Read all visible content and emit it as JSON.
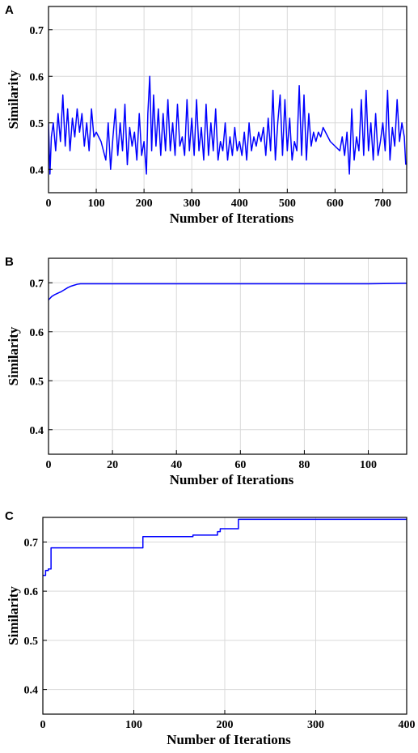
{
  "chart_data": [
    {
      "type": "line",
      "panel": "A",
      "xlabel": "Number of Iterations",
      "ylabel": "Similarity",
      "xlim": [
        0,
        750
      ],
      "ylim": [
        0.35,
        0.75
      ],
      "xticks": [
        0,
        100,
        200,
        300,
        400,
        500,
        600,
        700
      ],
      "yticks": [
        0.4,
        0.5,
        0.6,
        0.7
      ],
      "grid": true,
      "series": [
        {
          "color": "#0000ff",
          "x": [
            0,
            3,
            6,
            10,
            15,
            20,
            25,
            30,
            35,
            40,
            45,
            50,
            55,
            60,
            65,
            70,
            75,
            80,
            85,
            90,
            95,
            100,
            110,
            120,
            125,
            130,
            135,
            140,
            145,
            150,
            155,
            160,
            165,
            170,
            175,
            180,
            185,
            190,
            195,
            200,
            205,
            208,
            212,
            216,
            220,
            225,
            230,
            235,
            240,
            245,
            250,
            255,
            260,
            265,
            270,
            275,
            280,
            285,
            290,
            295,
            300,
            305,
            310,
            315,
            320,
            325,
            330,
            335,
            340,
            345,
            350,
            355,
            360,
            365,
            370,
            375,
            380,
            385,
            390,
            395,
            400,
            405,
            410,
            415,
            420,
            425,
            430,
            435,
            440,
            445,
            450,
            455,
            460,
            465,
            470,
            475,
            480,
            485,
            490,
            495,
            500,
            505,
            510,
            515,
            520,
            525,
            530,
            535,
            540,
            545,
            550,
            555,
            560,
            565,
            570,
            575,
            580,
            590,
            600,
            610,
            615,
            620,
            625,
            630,
            635,
            640,
            645,
            650,
            655,
            660,
            665,
            670,
            675,
            680,
            685,
            690,
            695,
            700,
            705,
            710,
            715,
            720,
            725,
            730,
            735,
            740,
            745,
            748
          ],
          "y": [
            0.5,
            0.39,
            0.47,
            0.5,
            0.44,
            0.52,
            0.46,
            0.56,
            0.45,
            0.53,
            0.44,
            0.51,
            0.47,
            0.53,
            0.48,
            0.52,
            0.45,
            0.5,
            0.44,
            0.53,
            0.47,
            0.48,
            0.46,
            0.42,
            0.5,
            0.4,
            0.47,
            0.53,
            0.43,
            0.5,
            0.44,
            0.54,
            0.41,
            0.49,
            0.45,
            0.48,
            0.42,
            0.52,
            0.43,
            0.46,
            0.39,
            0.52,
            0.6,
            0.44,
            0.56,
            0.45,
            0.53,
            0.43,
            0.52,
            0.44,
            0.55,
            0.44,
            0.5,
            0.43,
            0.54,
            0.45,
            0.47,
            0.43,
            0.55,
            0.44,
            0.51,
            0.43,
            0.55,
            0.44,
            0.49,
            0.42,
            0.54,
            0.43,
            0.5,
            0.44,
            0.53,
            0.42,
            0.46,
            0.44,
            0.5,
            0.42,
            0.47,
            0.43,
            0.49,
            0.44,
            0.46,
            0.43,
            0.48,
            0.42,
            0.5,
            0.44,
            0.47,
            0.45,
            0.48,
            0.46,
            0.49,
            0.43,
            0.51,
            0.44,
            0.57,
            0.42,
            0.5,
            0.56,
            0.43,
            0.55,
            0.44,
            0.51,
            0.42,
            0.46,
            0.44,
            0.58,
            0.43,
            0.56,
            0.42,
            0.52,
            0.45,
            0.48,
            0.46,
            0.48,
            0.47,
            0.49,
            0.48,
            0.46,
            0.45,
            0.44,
            0.47,
            0.43,
            0.48,
            0.39,
            0.53,
            0.42,
            0.47,
            0.44,
            0.55,
            0.43,
            0.57,
            0.44,
            0.5,
            0.42,
            0.52,
            0.43,
            0.46,
            0.5,
            0.44,
            0.57,
            0.42,
            0.49,
            0.45,
            0.55,
            0.46,
            0.5,
            0.47,
            0.41
          ]
        }
      ]
    },
    {
      "type": "line",
      "panel": "B",
      "xlabel": "Number of Iterations",
      "ylabel": "Similarity",
      "xlim": [
        0,
        112
      ],
      "ylim": [
        0.35,
        0.75
      ],
      "xticks": [
        0,
        20,
        40,
        60,
        80,
        100
      ],
      "yticks": [
        0.4,
        0.5,
        0.6,
        0.7
      ],
      "grid": true,
      "series": [
        {
          "color": "#0000ff",
          "x": [
            0,
            1,
            2,
            3,
            4,
            5,
            6,
            7,
            8,
            9,
            10,
            12,
            15,
            20,
            40,
            60,
            80,
            100,
            112
          ],
          "y": [
            0.665,
            0.672,
            0.676,
            0.679,
            0.682,
            0.686,
            0.69,
            0.693,
            0.695,
            0.697,
            0.698,
            0.698,
            0.698,
            0.698,
            0.698,
            0.698,
            0.698,
            0.698,
            0.699
          ]
        }
      ]
    },
    {
      "type": "line",
      "panel": "C",
      "xlabel": "Number of Iterations",
      "ylabel": "Similarity",
      "xlim": [
        0,
        400
      ],
      "ylim": [
        0.35,
        0.75
      ],
      "xticks": [
        0,
        100,
        200,
        300,
        400
      ],
      "yticks": [
        0.4,
        0.5,
        0.6,
        0.7
      ],
      "grid": true,
      "series": [
        {
          "color": "#0000ff",
          "x": [
            0,
            3,
            3,
            6,
            6,
            9,
            9,
            110,
            110,
            165,
            165,
            192,
            192,
            195,
            195,
            215,
            215,
            400
          ],
          "y": [
            0.632,
            0.632,
            0.642,
            0.642,
            0.645,
            0.645,
            0.688,
            0.688,
            0.711,
            0.711,
            0.714,
            0.714,
            0.721,
            0.721,
            0.727,
            0.727,
            0.746,
            0.746
          ]
        }
      ]
    }
  ]
}
